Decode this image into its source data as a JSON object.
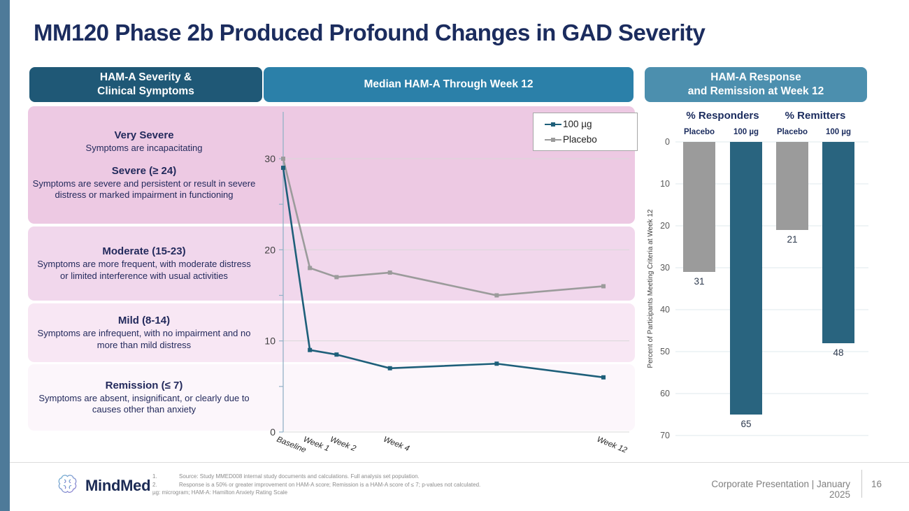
{
  "slide": {
    "title": "MM120 Phase 2b Produced Profound Changes in GAD Severity",
    "page_number": "16",
    "footer_right": "Corporate Presentation | January 2025"
  },
  "colors": {
    "accent_bar": "#4e7a99",
    "title_text": "#1b2c5e",
    "drug_teal": "#1e5f7a",
    "placebo_gray": "#9b9b9b"
  },
  "logo": {
    "icon": "brain-logo-icon",
    "text": "MindMed"
  },
  "headers": {
    "severity": {
      "line1": "HAM-A Severity &",
      "line2": "Clinical Symptoms",
      "bg": "#1f5876"
    },
    "median": {
      "line1": "Median HAM-A Through Week 12",
      "bg": "#2b80a9"
    },
    "response": {
      "line1": "HAM-A Response",
      "line2": "and Remission at Week 12",
      "bg": "#4c8fae"
    }
  },
  "severity_panel": {
    "bands": [
      {
        "color": "#edc9e3",
        "entries": [
          {
            "heading": "Very Severe",
            "desc": "Symptoms are incapacitating"
          },
          {
            "heading": "Severe (≥ 24)",
            "desc": "Symptoms are severe and persistent or result in severe distress or marked impairment in functioning"
          }
        ]
      },
      {
        "color": "#f1d7ec",
        "entries": [
          {
            "heading": "Moderate (15-23)",
            "desc": "Symptoms are more frequent, with moderate distress or limited interference with usual activities"
          }
        ]
      },
      {
        "color": "#f8e7f4",
        "entries": [
          {
            "heading": "Mild (8-14)",
            "desc": "Symptoms are infrequent, with no impairment and no more than mild distress"
          }
        ]
      },
      {
        "color": "#fcf6fb",
        "entries": [
          {
            "heading": "Remission (≤ 7)",
            "desc": "Symptoms are absent, insignificant, or clearly due to causes other than anxiety"
          }
        ]
      }
    ]
  },
  "chart_data": [
    {
      "type": "line",
      "title": "Median HAM-A Through Week 12",
      "weeks": [
        0,
        1,
        2,
        4,
        8,
        12
      ],
      "x_ticks": [
        {
          "week": 0,
          "label": "Baseline"
        },
        {
          "week": 1,
          "label": "Week 1"
        },
        {
          "week": 2,
          "label": "Week 2"
        },
        {
          "week": 4,
          "label": "Week 4"
        },
        {
          "week": 12,
          "label": "Week 12"
        }
      ],
      "series": [
        {
          "name": "100 µg",
          "color": "#1e5f7a",
          "values": [
            29,
            9,
            8.5,
            7,
            7.5,
            6
          ]
        },
        {
          "name": "Placebo",
          "color": "#9b9b9b",
          "values": [
            30,
            18,
            17,
            17.5,
            15,
            16
          ]
        }
      ],
      "ylim": [
        0,
        31
      ],
      "yticks": [
        0,
        10,
        20,
        30
      ],
      "minor_tick_step": 5,
      "grid": true,
      "legend_position": "top-right"
    },
    {
      "type": "bar",
      "orientation": "inverted-vertical",
      "groups": [
        "% Responders",
        "% Remitters"
      ],
      "bars": [
        {
          "group": "% Responders",
          "label": "Placebo",
          "value": 31,
          "color": "#9b9b9b"
        },
        {
          "group": "% Responders",
          "label": "100 µg",
          "value": 65,
          "color": "#29647f"
        },
        {
          "group": "% Remitters",
          "label": "Placebo",
          "value": 21,
          "color": "#9b9b9b"
        },
        {
          "group": "% Remitters",
          "label": "100 µg",
          "value": 48,
          "color": "#29647f"
        }
      ],
      "ylabel": "Percent of Participants Meeting Criteria at Week 12",
      "ylim": [
        0,
        70
      ],
      "yticks": [
        0,
        10,
        20,
        30,
        40,
        50,
        60,
        70
      ],
      "grid": true
    }
  ],
  "footnotes": {
    "items": [
      {
        "num": "1.",
        "text": "Source: Study MMED008 internal study documents and calculations. Full analysis set population."
      },
      {
        "num": "2.",
        "text": "Response is a 50% or greater improvement on HAM-A score; Remission is a HAM-A score of ≤ 7; p-values not calculated."
      }
    ],
    "abbrev": "µg: microgram; HAM-A: Hamilton Anxiety Rating Scale"
  }
}
